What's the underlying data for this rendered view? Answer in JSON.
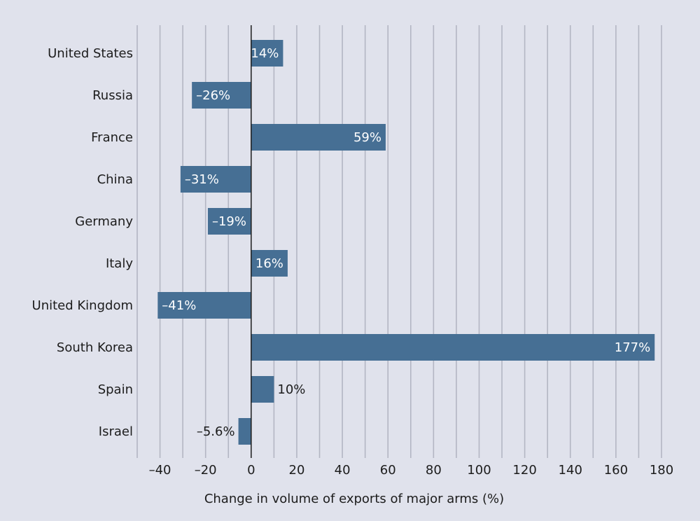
{
  "chart_data": {
    "type": "bar",
    "orientation": "horizontal",
    "categories": [
      "United States",
      "Russia",
      "France",
      "China",
      "Germany",
      "Italy",
      "United Kingdom",
      "South Korea",
      "Spain",
      "Israel"
    ],
    "values": [
      14,
      -26,
      59,
      -31,
      -19,
      16,
      -41,
      177,
      10,
      -5.6
    ],
    "data_labels": [
      "14%",
      "–26%",
      "59%",
      "–31%",
      "–19%",
      "16%",
      "–41%",
      "177%",
      "10%",
      "–5.6%"
    ],
    "xlabel": "Change in volume of exports of major arms (%)",
    "ylabel": "",
    "xlim": [
      -50,
      180
    ],
    "xticks": [
      -40,
      -20,
      0,
      20,
      40,
      60,
      80,
      100,
      120,
      140,
      160,
      180
    ],
    "xtick_labels": [
      "–40",
      "–20",
      "0",
      "20",
      "40",
      "60",
      "80",
      "100",
      "120",
      "140",
      "160",
      "180"
    ],
    "grid": true,
    "bar_color": "#466f94",
    "background_color": "#e0e2ec",
    "grid_color": "#b3b6c3"
  }
}
